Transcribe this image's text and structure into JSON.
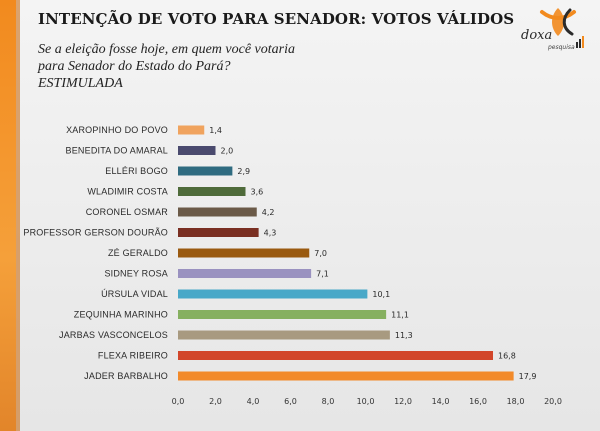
{
  "title": "INTENÇÃO DE VOTO PARA SENADOR: VOTOS VÁLIDOS",
  "question": "Se a eleição fosse hoje, em quem você votaria para Senador do Estado do Pará? ESTIMULADA",
  "logo": {
    "name": "doxa",
    "tagline": "pesquisa",
    "colors": [
      "#f28a1e",
      "#2b2b2b"
    ]
  },
  "chart_data": {
    "type": "bar",
    "orientation": "horizontal",
    "title": "INTENÇÃO DE VOTO PARA SENADOR: VOTOS VÁLIDOS",
    "categories": [
      "XAROPINHO DO POVO",
      "BENEDITA DO AMARAL",
      "ELLÉRI BOGO",
      "WLADIMIR COSTA",
      "CORONEL OSMAR",
      "PROFESSOR GERSON DOURÃO",
      "ZÉ GERALDO",
      "SIDNEY ROSA",
      "ÚRSULA VIDAL",
      "ZEQUINHA MARINHO",
      "JARBAS VASCONCELOS",
      "FLEXA RIBEIRO",
      "JADER BARBALHO"
    ],
    "values": [
      1.4,
      2.0,
      2.9,
      3.6,
      4.2,
      4.3,
      7.0,
      7.1,
      10.1,
      11.1,
      11.3,
      16.8,
      17.9
    ],
    "value_labels": [
      "1,4",
      "2,0",
      "2,9",
      "3,6",
      "4,2",
      "4,3",
      "7,0",
      "7,1",
      "10,1",
      "11,1",
      "11,3",
      "16,8",
      "17,9"
    ],
    "colors": [
      "#f0a35e",
      "#4a4a6e",
      "#2f6b80",
      "#4f6b3a",
      "#6b5a48",
      "#7a2f22",
      "#9a5a10",
      "#9a92c0",
      "#48a8c8",
      "#86b060",
      "#a89a80",
      "#d2462a",
      "#f28a2a"
    ],
    "xlim": [
      0,
      20
    ],
    "xticks": [
      0,
      2,
      4,
      6,
      8,
      10,
      12,
      14,
      16,
      18,
      20
    ],
    "xtick_labels": [
      "0,0",
      "2,0",
      "4,0",
      "6,0",
      "8,0",
      "10,0",
      "12,0",
      "14,0",
      "16,0",
      "18,0",
      "20,0"
    ],
    "grid": false,
    "legend": "none"
  }
}
